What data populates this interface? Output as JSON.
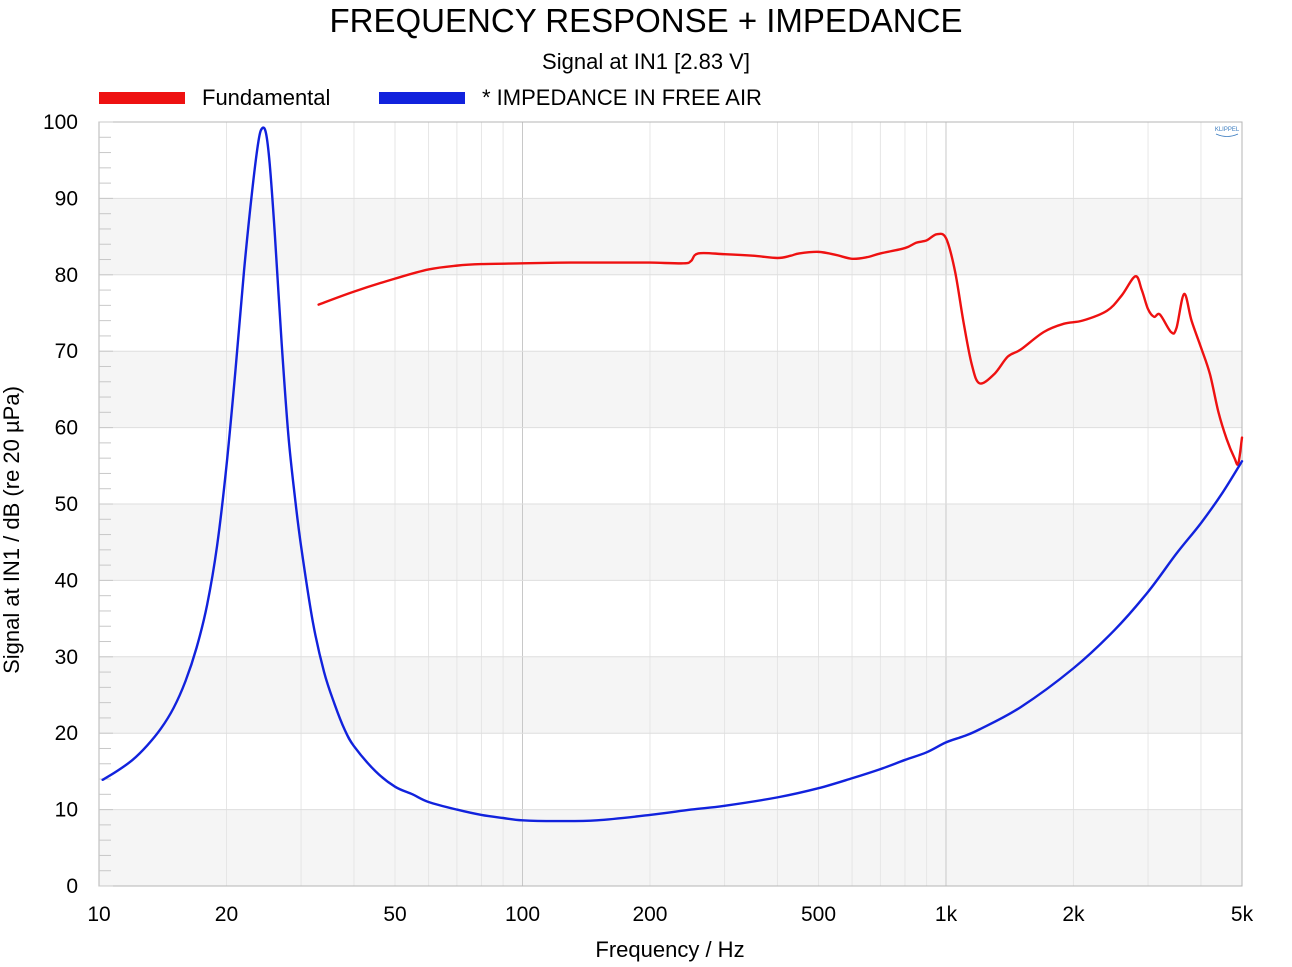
{
  "chart_data": {
    "type": "line",
    "title": "FREQUENCY RESPONSE + IMPEDANCE",
    "subtitle": "Signal at IN1 [2.83 V]",
    "xlabel": "Frequency / Hz",
    "ylabel": "Signal at IN1 / dB (re 20 µPa)",
    "xscale": "log",
    "xlim": [
      10,
      5000
    ],
    "ylim": [
      0,
      100
    ],
    "xticks": [
      {
        "value": 10,
        "label": "10"
      },
      {
        "value": 20,
        "label": "20"
      },
      {
        "value": 50,
        "label": "50"
      },
      {
        "value": 100,
        "label": "100"
      },
      {
        "value": 200,
        "label": "200"
      },
      {
        "value": 500,
        "label": "500"
      },
      {
        "value": 1000,
        "label": "1k"
      },
      {
        "value": 2000,
        "label": "2k"
      },
      {
        "value": 5000,
        "label": "5k"
      }
    ],
    "yticks": [
      0,
      10,
      20,
      30,
      40,
      50,
      60,
      70,
      80,
      90,
      100
    ],
    "legend_position": "top-left",
    "logo": "KLIPPEL",
    "series": [
      {
        "name": "Fundamental",
        "color": "#ee1111",
        "x": [
          33,
          40,
          50,
          60,
          70,
          80,
          100,
          130,
          170,
          200,
          240,
          250,
          260,
          300,
          350,
          400,
          430,
          450,
          500,
          550,
          600,
          650,
          700,
          800,
          850,
          900,
          950,
          1000,
          1050,
          1100,
          1150,
          1200,
          1300,
          1400,
          1500,
          1700,
          1900,
          2100,
          2400,
          2600,
          2800,
          2900,
          3000,
          3100,
          3200,
          3400,
          3500,
          3650,
          3800,
          4000,
          4200,
          4400,
          4600,
          4800,
          4900,
          5000
        ],
        "y": [
          76.1,
          77.8,
          79.5,
          80.7,
          81.2,
          81.4,
          81.5,
          81.6,
          81.6,
          81.6,
          81.5,
          81.8,
          82.8,
          82.7,
          82.5,
          82.2,
          82.5,
          82.8,
          83.0,
          82.6,
          82.1,
          82.3,
          82.8,
          83.5,
          84.2,
          84.5,
          85.3,
          84.8,
          80.5,
          73.8,
          68.3,
          65.8,
          67.0,
          69.3,
          70.2,
          72.5,
          73.6,
          74.0,
          75.3,
          77.3,
          79.8,
          78.0,
          75.5,
          74.5,
          74.8,
          72.5,
          73.0,
          77.5,
          74.0,
          70.5,
          67.0,
          62.0,
          58.5,
          56.0,
          55.3,
          58.7
        ]
      },
      {
        "name": "* IMPEDANCE IN FREE AIR",
        "color": "#1122dd",
        "x": [
          10.2,
          11,
          12,
          13,
          14,
          15,
          16,
          17,
          18,
          19,
          20,
          21,
          22,
          23,
          23.8,
          24.3,
          24.8,
          25.3,
          26,
          27,
          28,
          29,
          30,
          32,
          34,
          36,
          38,
          40,
          45,
          50,
          55,
          60,
          70,
          80,
          90,
          100,
          120,
          150,
          200,
          250,
          300,
          400,
          500,
          600,
          700,
          800,
          900,
          1000,
          1100,
          1200,
          1500,
          2000,
          2500,
          3000,
          3500,
          4000,
          4500,
          5000
        ],
        "y": [
          13.9,
          15.0,
          16.5,
          18.4,
          20.6,
          23.3,
          26.8,
          31.2,
          36.8,
          44.5,
          55.0,
          67.5,
          80.5,
          91.0,
          97.5,
          99.2,
          98.5,
          94.5,
          85.5,
          71.0,
          59.0,
          51.0,
          44.5,
          34.5,
          28.0,
          23.8,
          20.5,
          18.3,
          15.0,
          13.0,
          12.0,
          11.0,
          10.0,
          9.3,
          8.9,
          8.6,
          8.5,
          8.6,
          9.3,
          10.0,
          10.5,
          11.6,
          12.8,
          14.1,
          15.3,
          16.5,
          17.5,
          18.8,
          19.6,
          20.5,
          23.4,
          28.5,
          33.5,
          38.5,
          43.5,
          47.5,
          51.5,
          55.6
        ]
      }
    ]
  }
}
